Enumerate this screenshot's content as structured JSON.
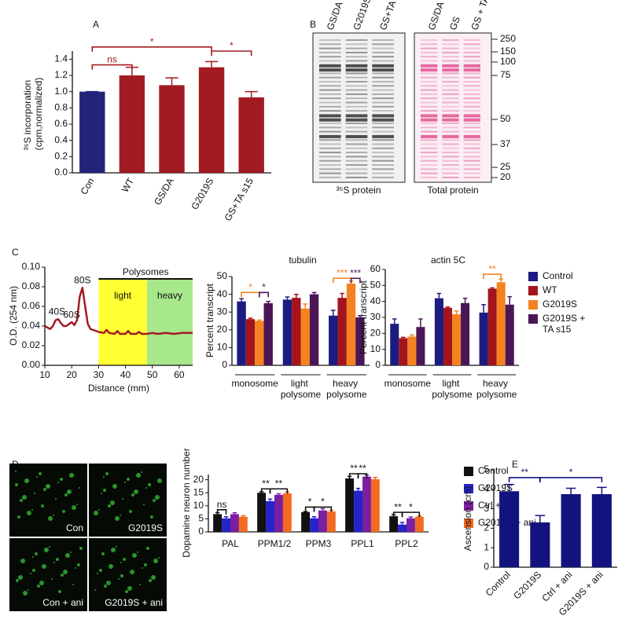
{
  "panels": [
    "A",
    "B",
    "C",
    "D",
    "E"
  ],
  "blot": {
    "lanes_35s": [
      "GS/DA",
      "G2019S",
      "GS+TA s15"
    ],
    "lanes_total": [
      "GS/DA",
      "GS",
      "GS + TA"
    ],
    "markers": [
      250,
      150,
      100,
      75,
      50,
      37,
      25,
      20
    ],
    "captions": [
      "³⁵S protein",
      "Total protein"
    ]
  },
  "micrographs": {
    "labels": [
      "Con",
      "G2019S",
      "Con + ani",
      "G2019S + ani"
    ]
  },
  "chart_data": [
    {
      "type": "bar",
      "categories": [
        "Con",
        "WT",
        "GS/DA",
        "G2019S",
        "GS+TA s15"
      ],
      "values": [
        1.0,
        1.2,
        1.08,
        1.3,
        0.93
      ],
      "errors": [
        0,
        0.1,
        0.09,
        0.07,
        0.07
      ],
      "colors": [
        "#23237a",
        "#a31b22",
        "#a31b22",
        "#a31b22",
        "#a31b22"
      ],
      "ylabel": "³⁵S incorporation (cpm,normalized)",
      "ylim": [
        0,
        1.5
      ],
      "yticks": [
        {
          "value": 0,
          "label": "0.0"
        },
        0.2,
        0.4,
        0.6,
        0.8,
        {
          "value": 1,
          "label": "1.0"
        },
        1.2,
        1.4
      ],
      "annotations": [
        {
          "text": "ns",
          "color": "#a31b22"
        },
        {
          "text": "*",
          "color": "#a31b22"
        },
        {
          "text": "*",
          "color": "#a31b22"
        }
      ]
    },
    {
      "type": "line",
      "xlabel": "Distance (mm)",
      "ylabel": "O.D. (254 nm)",
      "color": "#a31b22",
      "x": [
        10,
        12,
        13,
        14,
        15,
        16,
        17,
        18,
        19,
        20,
        21,
        22,
        23,
        24,
        25,
        26,
        27,
        28,
        30,
        32,
        33,
        34,
        36,
        37,
        38,
        40,
        41,
        42,
        44,
        45,
        46,
        48,
        50,
        52,
        55,
        58,
        61,
        65
      ],
      "values": [
        0.04,
        0.037,
        0.04,
        0.046,
        0.047,
        0.043,
        0.04,
        0.04,
        0.042,
        0.044,
        0.041,
        0.046,
        0.07,
        0.079,
        0.06,
        0.042,
        0.037,
        0.036,
        0.034,
        0.033,
        0.036,
        0.033,
        0.032,
        0.035,
        0.032,
        0.032,
        0.035,
        0.032,
        0.032,
        0.034,
        0.032,
        0.032,
        0.033,
        0.032,
        0.033,
        0.032,
        0.033,
        0.033
      ],
      "xlim": [
        10,
        65
      ],
      "xticks": [
        10,
        20,
        30,
        40,
        50,
        60
      ],
      "ylim": [
        0,
        0.1
      ],
      "yticks": [
        {
          "value": 0,
          "label": "0.00"
        },
        {
          "value": 0.02,
          "label": "0.02"
        },
        {
          "value": 0.04,
          "label": "0.04"
        },
        {
          "value": 0.06,
          "label": "0.06"
        },
        {
          "value": 0.08,
          "label": "0.08"
        },
        {
          "value": 0.1,
          "label": "0.10"
        }
      ],
      "span_label": "Polysomes",
      "regions": [
        {
          "label": "light",
          "x": [
            30,
            48
          ],
          "color": "#ffff33"
        },
        {
          "label": "heavy",
          "x": [
            48,
            66
          ],
          "color": "#a6e88a"
        }
      ],
      "annotations": [
        {
          "text": "40S"
        },
        {
          "text": "60S"
        },
        {
          "text": "80S"
        }
      ]
    },
    {
      "type": "bar",
      "title": "tubulin",
      "ylabel": "Percent transcript",
      "categories": [
        "monosome",
        "light polysome",
        "heavy polysome"
      ],
      "series": [
        {
          "color": "#1c1c80",
          "values": [
            36,
            37,
            28
          ],
          "errors": [
            1.5,
            1.5,
            3
          ]
        },
        {
          "color": "#a3141c",
          "values": [
            26,
            38,
            38
          ],
          "errors": [
            0.5,
            2,
            2.5
          ]
        },
        {
          "color": "#f58220",
          "values": [
            25,
            32,
            46
          ],
          "errors": [
            0.5,
            2.5,
            1.5
          ]
        },
        {
          "color": "#4b1656",
          "values": [
            35,
            40,
            27
          ],
          "errors": [
            1,
            1,
            1
          ]
        }
      ],
      "ylim": [
        0,
        50
      ],
      "yticks": [
        0,
        10,
        20,
        30,
        40,
        50
      ],
      "annotations": [
        {
          "text": "*",
          "color": "#f58220"
        },
        {
          "text": "*",
          "color": "#4b1656"
        },
        {
          "text": "***",
          "color": "#f58220"
        },
        {
          "text": "***",
          "color": "#4b1656"
        }
      ]
    },
    {
      "type": "bar",
      "title": "actin 5C",
      "ylabel": "Percent transcript",
      "categories": [
        "monosome",
        "light polysome",
        "heavy polysome"
      ],
      "series": [
        {
          "name": "Control",
          "color": "#1c1c80",
          "values": [
            26,
            42,
            33
          ],
          "errors": [
            3,
            3,
            5
          ]
        },
        {
          "name": "WT",
          "color": "#a3141c",
          "values": [
            17,
            36,
            48
          ],
          "errors": [
            0.5,
            0.5,
            0.5
          ]
        },
        {
          "name": "G2019S",
          "color": "#f58220",
          "values": [
            18,
            32,
            52
          ],
          "errors": [
            1,
            2,
            2
          ]
        },
        {
          "name": "G2019S + TA s15",
          "color": "#4b1656",
          "values": [
            24,
            39,
            38
          ],
          "errors": [
            5,
            3,
            5
          ]
        }
      ],
      "ylim": [
        0,
        60
      ],
      "yticks": [
        0,
        10,
        20,
        30,
        40,
        50,
        60
      ],
      "annotations": [
        {
          "text": "**",
          "color": "#f58220"
        }
      ]
    },
    {
      "type": "bar",
      "ylabel": "Dopamine neuron number",
      "categories": [
        "PAL",
        "PPM1/2",
        "PPM3",
        "PPL1",
        "PPL2"
      ],
      "series": [
        {
          "name": "Control",
          "color": "#111111",
          "values": [
            6.8,
            15,
            7.6,
            20.5,
            6
          ],
          "errors": [
            0.6,
            0.4,
            0.2,
            0.8,
            0.6
          ]
        },
        {
          "name": "G2019S",
          "color": "#2424c8",
          "values": [
            5.2,
            11.8,
            5.2,
            15.8,
            2.8
          ],
          "errors": [
            0.6,
            0.8,
            0.6,
            0.9,
            0.8
          ]
        },
        {
          "name": "Ctrl + ani",
          "color": "#7b1fa2",
          "values": [
            6.8,
            14.2,
            8.2,
            21.2,
            5.2
          ],
          "errors": [
            0.5,
            0.4,
            0.7,
            0.6,
            0.5
          ]
        },
        {
          "name": "G2019S + ani",
          "color": "#f26b21",
          "values": [
            5.8,
            14.8,
            7.8,
            20.2,
            5.8
          ],
          "errors": [
            0.4,
            0.5,
            0.5,
            0.7,
            0.3
          ]
        }
      ],
      "ylim": [
        0,
        22
      ],
      "yticks": [
        0,
        5,
        10,
        15,
        20
      ],
      "annotations": [
        {
          "text": "ns"
        },
        {
          "text": "**"
        },
        {
          "text": "**"
        },
        {
          "text": "*"
        },
        {
          "text": "*"
        },
        {
          "text": "**"
        },
        {
          "text": "**"
        },
        {
          "text": "**"
        },
        {
          "text": "*"
        }
      ]
    },
    {
      "type": "bar",
      "ylabel": "Ascension (cm)",
      "categories": [
        "Control",
        "G2019S",
        "Ctrl + ani",
        "G2019S + ani"
      ],
      "values": [
        3.9,
        2.3,
        3.75,
        3.75
      ],
      "errors": [
        0.35,
        0.35,
        0.3,
        0.35
      ],
      "color": "#13137f",
      "ylim": [
        0,
        5
      ],
      "yticks": [
        0,
        1,
        2,
        3,
        4,
        5
      ],
      "annotations": [
        {
          "text": "**",
          "color": "#13137f"
        },
        {
          "text": "*",
          "color": "#13137f"
        }
      ]
    }
  ]
}
